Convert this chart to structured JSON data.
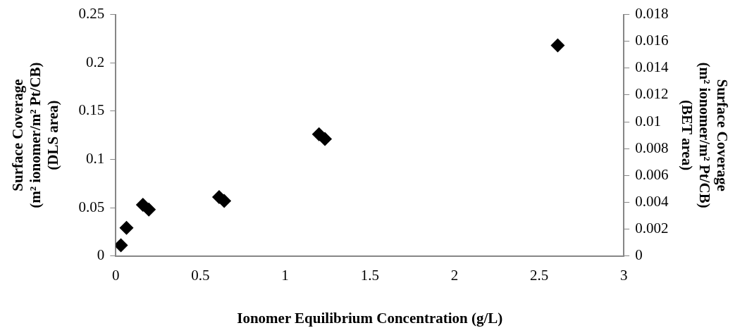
{
  "chart_data": {
    "type": "scatter",
    "xlabel": "Ionomer Equilibrium Concentration (g/L)",
    "ylabel": "Surface Coverage\n(m² ionomer/m² Pt/CB)\n(DLS area)",
    "y2label": "Surface Coverage\n(m² ionomer/m² Pt/CB)\n(BET area)",
    "x": [
      0.03,
      0.063,
      0.16,
      0.195,
      0.61,
      0.64,
      1.2,
      1.235,
      2.61
    ],
    "series": [
      {
        "color": "#000000",
        "values": [
          0.011,
          0.029,
          0.053,
          0.048,
          0.061,
          0.057,
          0.126,
          0.121,
          0.218
        ]
      }
    ],
    "marker": "diamond",
    "xlim": [
      0,
      3
    ],
    "xticks": [
      0,
      0.5,
      1,
      1.5,
      2,
      2.5,
      3
    ],
    "ylim": [
      0,
      0.25
    ],
    "yticks": [
      0,
      0.05,
      0.1,
      0.15,
      0.2,
      0.25
    ],
    "y2lim": [
      0,
      0.018
    ],
    "y2ticks": [
      0,
      0.002,
      0.004,
      0.006,
      0.008,
      0.01,
      0.012,
      0.014,
      0.016,
      0.018
    ],
    "grid": false,
    "legend": false
  }
}
